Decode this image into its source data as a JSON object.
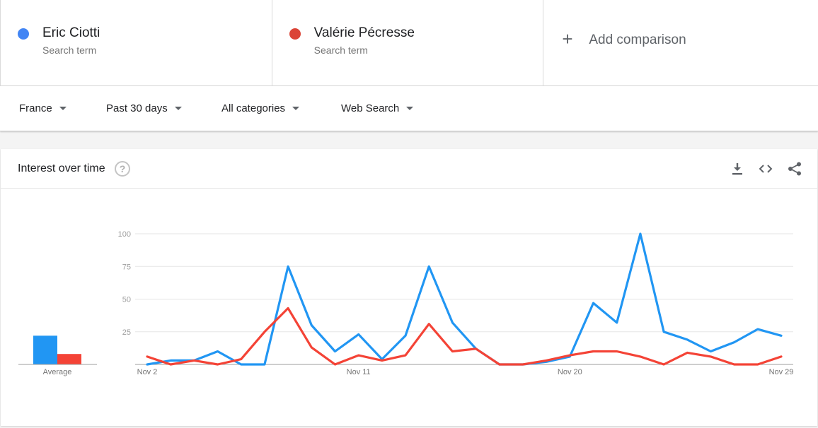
{
  "terms": [
    {
      "name": "Eric Ciotti",
      "subtitle": "Search term",
      "color": "#4285f4"
    },
    {
      "name": "Valérie Pécresse",
      "subtitle": "Search term",
      "color": "#db4437"
    }
  ],
  "add_comparison": {
    "label": "Add comparison",
    "icon": "plus-icon"
  },
  "filters": {
    "region": "France",
    "period": "Past 30 days",
    "category": "All categories",
    "property": "Web Search"
  },
  "widget": {
    "title": "Interest over time",
    "help_icon": "?",
    "icons": [
      "download-icon",
      "embed-code-icon",
      "share-icon"
    ]
  },
  "chart_data": {
    "type": "line",
    "x_tick_labels": [
      "Nov 2",
      "Nov 11",
      "Nov 20",
      "Nov 29"
    ],
    "y_ticks": [
      25,
      50,
      75,
      100
    ],
    "ylim": [
      0,
      100
    ],
    "grid": true,
    "x": [
      "Nov 2",
      "Nov 3",
      "Nov 4",
      "Nov 5",
      "Nov 6",
      "Nov 7",
      "Nov 8",
      "Nov 9",
      "Nov 10",
      "Nov 11",
      "Nov 12",
      "Nov 13",
      "Nov 14",
      "Nov 15",
      "Nov 16",
      "Nov 17",
      "Nov 18",
      "Nov 19",
      "Nov 20",
      "Nov 21",
      "Nov 22",
      "Nov 23",
      "Nov 24",
      "Nov 25",
      "Nov 26",
      "Nov 27",
      "Nov 28",
      "Nov 29"
    ],
    "series": [
      {
        "name": "Eric Ciotti",
        "color": "#2196f3",
        "values": [
          0,
          3,
          3,
          10,
          0,
          0,
          75,
          30,
          10,
          23,
          4,
          22,
          75,
          32,
          12,
          0,
          0,
          2,
          6,
          47,
          32,
          100,
          25,
          19,
          10,
          17,
          27,
          22
        ]
      },
      {
        "name": "Valérie Pécresse",
        "color": "#f44336",
        "values": [
          6,
          0,
          3,
          0,
          4,
          25,
          43,
          13,
          0,
          7,
          3,
          7,
          31,
          10,
          12,
          0,
          0,
          3,
          7,
          10,
          10,
          6,
          0,
          9,
          6,
          0,
          0,
          6
        ]
      }
    ],
    "average": {
      "label": "Average",
      "bars": [
        {
          "name": "Eric Ciotti",
          "value": 22,
          "color": "#2196f3"
        },
        {
          "name": "Valérie Pécresse",
          "value": 8,
          "color": "#f44336"
        }
      ]
    }
  }
}
